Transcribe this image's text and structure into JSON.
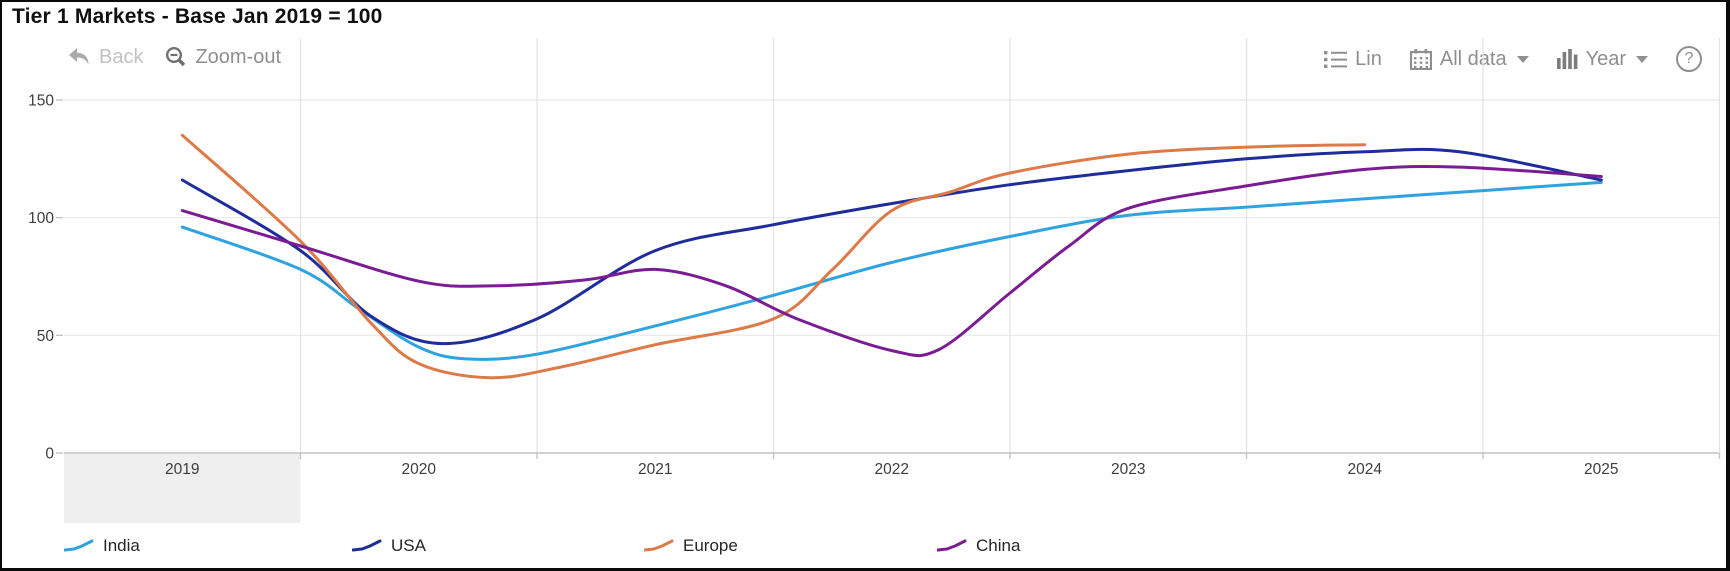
{
  "window": {
    "title": "Tier 1 Markets - Base Jan 2019 = 100"
  },
  "toolbar": {
    "back_label": "Back",
    "zoom_out_label": "Zoom-out",
    "lin_label": "Lin",
    "all_data_label": "All data",
    "year_label": "Year",
    "help_label": "?"
  },
  "chart_data": {
    "type": "line",
    "title": "Tier 1 Markets - Base Jan 2019 = 100",
    "x_categories": [
      "2019",
      "2020",
      "2021",
      "2022",
      "2023",
      "2024",
      "2025"
    ],
    "y_tick_labels": [
      "0",
      "50",
      "100",
      "150"
    ],
    "y_ticks": [
      0,
      50,
      100,
      150
    ],
    "ylim": [
      0,
      150
    ],
    "grid": true,
    "legend_position": "bottom",
    "highlighted_category": "2019",
    "series": [
      {
        "name": "India",
        "color": "#2FA3DF",
        "points": [
          [
            2019,
            96
          ],
          [
            2019.5,
            78
          ],
          [
            2019.75,
            61
          ],
          [
            2020,
            45
          ],
          [
            2020.2,
            40
          ],
          [
            2020.5,
            42
          ],
          [
            2021,
            54
          ],
          [
            2021.5,
            67
          ],
          [
            2022,
            81
          ],
          [
            2022.5,
            92
          ],
          [
            2023,
            101
          ],
          [
            2023.5,
            104.5
          ],
          [
            2024,
            108
          ],
          [
            2024.5,
            111.5
          ],
          [
            2025,
            115
          ]
        ]
      },
      {
        "name": "USA",
        "color": "#1E2D9B",
        "points": [
          [
            2019,
            116
          ],
          [
            2019.5,
            86
          ],
          [
            2019.8,
            58
          ],
          [
            2020.1,
            46.5
          ],
          [
            2020.5,
            57
          ],
          [
            2021,
            86
          ],
          [
            2021.5,
            97
          ],
          [
            2022,
            106
          ],
          [
            2022.5,
            114
          ],
          [
            2023,
            120
          ],
          [
            2023.5,
            125
          ],
          [
            2024,
            128
          ],
          [
            2024.4,
            128
          ],
          [
            2025,
            116
          ]
        ]
      },
      {
        "name": "Europe",
        "color": "#DD7A48",
        "points": [
          [
            2019,
            135
          ],
          [
            2019.5,
            90
          ],
          [
            2019.8,
            55
          ],
          [
            2020,
            38
          ],
          [
            2020.3,
            32
          ],
          [
            2020.6,
            36.5
          ],
          [
            2021,
            46
          ],
          [
            2021.5,
            57
          ],
          [
            2021.75,
            78
          ],
          [
            2022,
            103
          ],
          [
            2022.25,
            111
          ],
          [
            2022.5,
            119
          ],
          [
            2023,
            127
          ],
          [
            2023.5,
            130
          ],
          [
            2024,
            131
          ]
        ]
      },
      {
        "name": "China",
        "color": "#7A1C93",
        "points": [
          [
            2019,
            103
          ],
          [
            2019.5,
            88
          ],
          [
            2020,
            73
          ],
          [
            2020.3,
            71
          ],
          [
            2020.7,
            73.5
          ],
          [
            2021,
            78
          ],
          [
            2021.3,
            71
          ],
          [
            2021.6,
            57
          ],
          [
            2022,
            43.5
          ],
          [
            2022.2,
            44
          ],
          [
            2022.5,
            68
          ],
          [
            2022.75,
            88
          ],
          [
            2023,
            104
          ],
          [
            2023.5,
            113.5
          ],
          [
            2024,
            120.5
          ],
          [
            2024.4,
            121.5
          ],
          [
            2025,
            117.5
          ]
        ]
      }
    ]
  },
  "colors": {
    "grid_line": "#e8e8e8",
    "vertical_grid_line": "#e2e2e2",
    "axis_line": "#c2c2c2",
    "tick": "#c6c6c6",
    "axis_label_text": "#3d3d3d",
    "highlight_band": "#efefef",
    "toolbar_text": "#8f8f8f",
    "disabled_text": "#c2c2c2",
    "title_text": "#101010"
  }
}
